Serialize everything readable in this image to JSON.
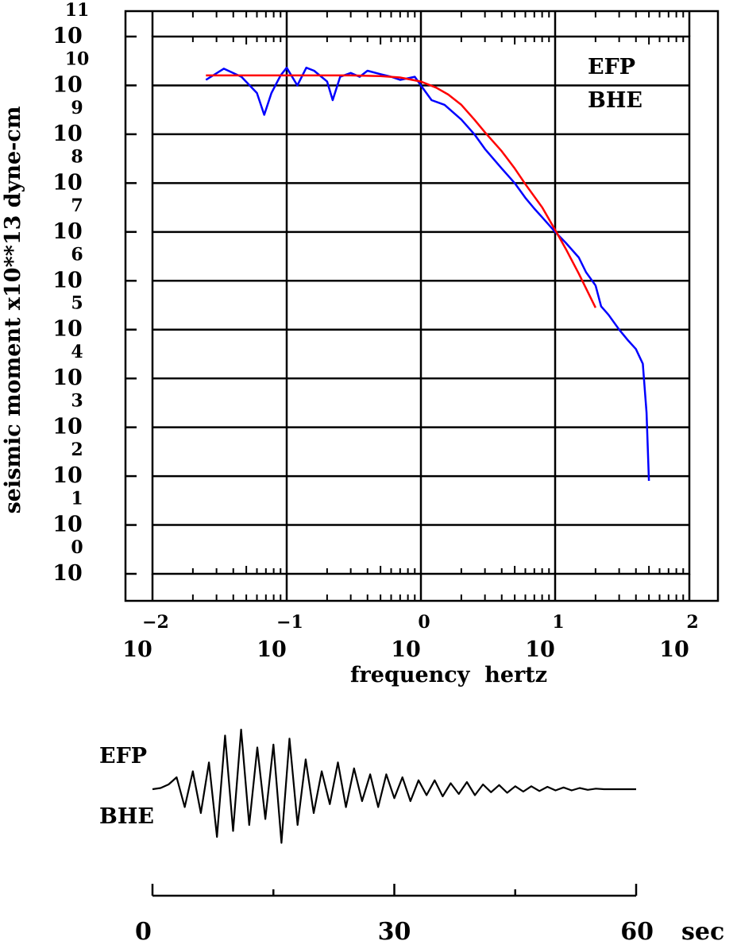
{
  "chart_data": [
    {
      "type": "line",
      "title": "",
      "xlabel": "frequency  hertz",
      "ylabel": "seismic moment x10**13 dyne-cm",
      "x_scale": "log",
      "y_scale": "log",
      "xlim": [
        0.01,
        100
      ],
      "ylim": [
        1,
        100000000000
      ],
      "grid": true,
      "annotations": [
        "EFP",
        "BHE"
      ],
      "x_ticks": [
        {
          "base": "10",
          "exp": "−2"
        },
        {
          "base": "10",
          "exp": "−1"
        },
        {
          "base": "10",
          "exp": "0"
        },
        {
          "base": "10",
          "exp": "1"
        },
        {
          "base": "10",
          "exp": "2"
        }
      ],
      "y_ticks": [
        {
          "base": "10",
          "exp": "0"
        },
        {
          "base": "10",
          "exp": "1"
        },
        {
          "base": "10",
          "exp": "2"
        },
        {
          "base": "10",
          "exp": "3"
        },
        {
          "base": "10",
          "exp": "4"
        },
        {
          "base": "10",
          "exp": "5"
        },
        {
          "base": "10",
          "exp": "6"
        },
        {
          "base": "10",
          "exp": "7"
        },
        {
          "base": "10",
          "exp": "8"
        },
        {
          "base": "10",
          "exp": "9"
        },
        {
          "base": "10",
          "exp": "10"
        },
        {
          "base": "10",
          "exp": "11"
        }
      ],
      "series": [
        {
          "kind": "spectrum",
          "color": "#0000ff",
          "x": [
            0.025,
            0.034,
            0.046,
            0.06,
            0.068,
            0.077,
            0.09,
            0.1,
            0.12,
            0.14,
            0.16,
            0.2,
            0.22,
            0.25,
            0.3,
            0.35,
            0.4,
            0.5,
            0.6,
            0.7,
            0.8,
            0.9,
            1.0,
            1.2,
            1.5,
            2.0,
            2.5,
            3.0,
            4.0,
            5.0,
            6.0,
            7.0,
            8.0,
            10.0,
            12.0,
            15.0,
            17.0,
            20.0,
            22.0,
            25.0,
            30.0,
            35.0,
            40.0,
            45.0,
            48.0,
            50.0
          ],
          "y": [
            13000000000.0,
            22000000000.0,
            15000000000.0,
            7000000000.0,
            2500000000.0,
            7000000000.0,
            16000000000.0,
            23000000000.0,
            10000000000.0,
            23000000000.0,
            20000000000.0,
            12000000000.0,
            5000000000.0,
            15000000000.0,
            18000000000.0,
            15000000000.0,
            20000000000.0,
            17000000000.0,
            15000000000.0,
            13000000000.0,
            14000000000.0,
            15000000000.0,
            10000000000.0,
            5000000000.0,
            4000000000.0,
            2000000000.0,
            1000000000.0,
            500000000.0,
            200000000.0,
            100000000.0,
            50000000.0,
            30000000.0,
            20000000.0,
            10000000.0,
            6000000.0,
            3000000.0,
            1500000.0,
            800000.0,
            300000.0,
            200000.0,
            100000.0,
            60000.0,
            40000.0,
            20000.0,
            2000.0,
            80
          ]
        },
        {
          "kind": "model",
          "color": "#ff0000",
          "x": [
            0.025,
            0.05,
            0.1,
            0.2,
            0.3,
            0.5,
            0.7,
            1.0,
            1.3,
            1.6,
            2.0,
            2.5,
            3.0,
            4.0,
            5.0,
            6.0,
            8.0,
            10.0,
            12.0,
            15.0,
            17.0,
            20.0
          ],
          "y": [
            16000000000.0,
            16000000000.0,
            16000000000.0,
            16000000000.0,
            16000000000.0,
            15500000000.0,
            14500000000.0,
            12000000000.0,
            9000000000.0,
            6500000000.0,
            4000000000.0,
            2000000000.0,
            1100000000.0,
            450000000.0,
            200000000.0,
            95000000.0,
            32000000.0,
            11000000.0,
            4500000.0,
            1400000.0,
            700000.0,
            280000.0
          ]
        }
      ]
    },
    {
      "type": "line",
      "title": "",
      "xlabel": "sec",
      "annotations": [
        "EFP",
        "BHE"
      ],
      "xlim": [
        0,
        60
      ],
      "x_ticks": [
        "0",
        "30",
        "60"
      ],
      "series": [
        {
          "kind": "seismogram",
          "color": "#000000",
          "x": [
            0,
            1,
            2,
            3,
            4,
            5,
            6,
            7,
            8,
            9,
            10,
            11,
            12,
            13,
            14,
            15,
            16,
            17,
            18,
            19,
            20,
            21,
            22,
            23,
            24,
            25,
            26,
            27,
            28,
            29,
            30,
            31,
            32,
            33,
            34,
            35,
            36,
            37,
            38,
            39,
            40,
            41,
            42,
            43,
            44,
            45,
            46,
            47,
            48,
            49,
            50,
            51,
            52,
            53,
            54,
            55,
            56,
            57,
            58,
            59,
            60
          ],
          "y": [
            0,
            0.02,
            0.08,
            0.2,
            -0.3,
            0.3,
            -0.4,
            0.45,
            -0.8,
            0.9,
            -0.7,
            1.0,
            -0.6,
            0.7,
            -0.5,
            0.75,
            -0.9,
            0.85,
            -0.6,
            0.5,
            -0.4,
            0.3,
            -0.25,
            0.45,
            -0.3,
            0.35,
            -0.2,
            0.25,
            -0.3,
            0.25,
            -0.15,
            0.2,
            -0.2,
            0.15,
            -0.1,
            0.15,
            -0.12,
            0.1,
            -0.08,
            0.12,
            -0.1,
            0.08,
            -0.05,
            0.07,
            -0.06,
            0.05,
            -0.04,
            0.05,
            -0.03,
            0.04,
            -0.02,
            0.03,
            -0.02,
            0.02,
            -0.01,
            0.01,
            0,
            0,
            0,
            0,
            0
          ]
        }
      ]
    }
  ]
}
